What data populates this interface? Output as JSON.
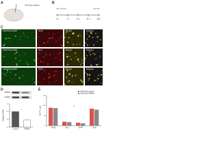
{
  "panel_labels": [
    "A",
    "B",
    "C",
    "D",
    "E"
  ],
  "panel_a": {
    "title": "AAV-hSyn injection"
  },
  "panel_b": {
    "start": "AAV injection",
    "end": "Sacrifice",
    "timepoints": [
      "0 d",
      "7 d",
      "14 d",
      "21 d",
      "28 d"
    ]
  },
  "panel_c": {
    "row_label": "AAV9-hSyn-EGFP",
    "markers": [
      "NeuN",
      "Iba-1",
      "GFAP"
    ],
    "merged": "Merged",
    "enlarged": "Enlarged"
  },
  "panel_d": {
    "blot_labels": [
      "PRDX6",
      "GAPDH"
    ]
  },
  "chart_data": [
    {
      "type": "bar",
      "ylabel": "Relative PRDX6",
      "categories": [
        "Control",
        "PRDX6"
      ],
      "values": [
        1.0,
        0.45
      ],
      "color": "#555555",
      "ylim": [
        0,
        1.5
      ],
      "yticks": [
        {
          "value": 0,
          "label": "0.0"
        },
        {
          "value": 0.5,
          "label": "0.5"
        },
        {
          "value": 1,
          "label": "1.0"
        },
        {
          "value": 1.5,
          "label": "1.5"
        }
      ],
      "annotation": "*"
    },
    {
      "type": "grouped_bar",
      "ylabel": "% GFP+ cells",
      "categories": [
        "NeuN",
        "Iba-1",
        "GFAP",
        "Total"
      ],
      "series": [
        {
          "name": "AAV9-hSyn-control",
          "color": "#d9534f",
          "values": [
            90,
            20,
            15,
            85
          ]
        },
        {
          "name": "AAV9-hSyn-PRDX6",
          "color": "#888888",
          "values": [
            88,
            18,
            12,
            80
          ]
        }
      ],
      "ylim": [
        0,
        150
      ],
      "yticks": [
        0,
        50,
        100,
        150
      ],
      "annotation": "**",
      "legend": "upper right"
    }
  ]
}
